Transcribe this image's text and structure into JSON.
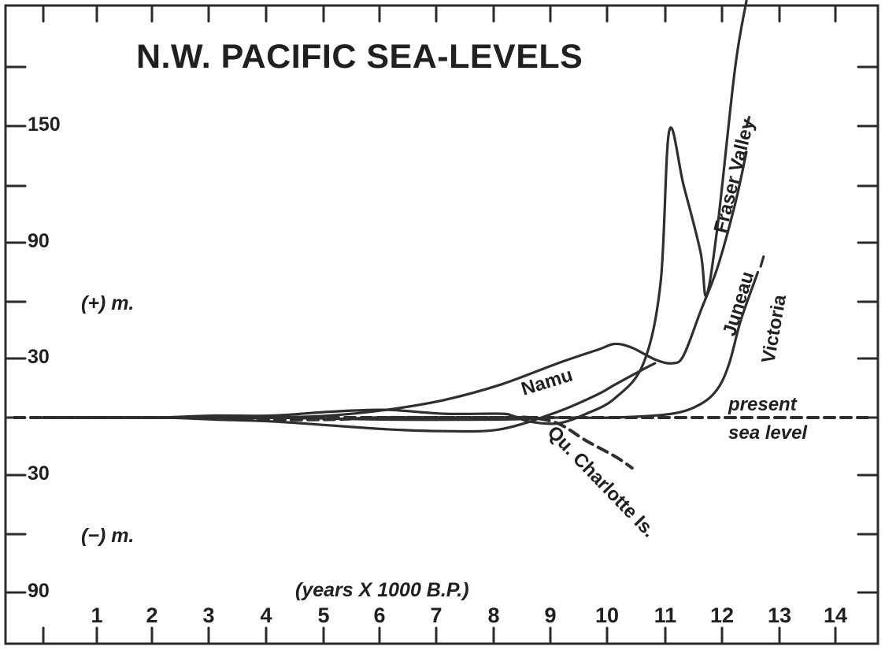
{
  "chart_data": {
    "type": "line",
    "title": "N.W. PACIFIC SEA-LEVELS",
    "xlabel": "(years X 1000 B.P.)",
    "y_positive_label": "(+) m.",
    "y_negative_label": "(−) m.",
    "x_ticks": [
      "1",
      "2",
      "3",
      "4",
      "5",
      "6",
      "7",
      "8",
      "9",
      "10",
      "11",
      "12",
      "13",
      "14"
    ],
    "y_ticks": [
      {
        "value": 150,
        "label": "150"
      },
      {
        "value": 90,
        "label": "90"
      },
      {
        "value": 30,
        "label": "30"
      },
      {
        "value": -30,
        "label": "30"
      },
      {
        "value": -90,
        "label": "90"
      }
    ],
    "xlim": [
      0,
      14.5
    ],
    "ylim": [
      -100,
      210
    ],
    "grid": false,
    "present_sea_level": {
      "label_line1": "present",
      "label_line2": "sea level",
      "y": 0
    },
    "series": [
      {
        "name": "Fraser Valley",
        "points": [
          [
            0,
            0
          ],
          [
            1,
            0
          ],
          [
            2,
            0
          ],
          [
            3,
            1
          ],
          [
            4,
            1
          ],
          [
            5,
            3
          ],
          [
            6,
            4
          ],
          [
            7,
            2
          ],
          [
            8,
            2
          ],
          [
            8.2,
            1
          ],
          [
            8.5,
            -2
          ],
          [
            9,
            -3
          ],
          [
            9.5,
            2
          ],
          [
            10,
            10
          ],
          [
            10.5,
            28
          ],
          [
            10.8,
            70
          ],
          [
            10.95,
            148
          ],
          [
            11.2,
            120
          ],
          [
            11.5,
            85
          ],
          [
            11.6,
            63
          ],
          [
            11.8,
            100
          ],
          [
            12.1,
            180
          ],
          [
            12.3,
            215
          ]
        ],
        "dashed": false
      },
      {
        "name": "Juneau",
        "points": [
          [
            0,
            0
          ],
          [
            2,
            0
          ],
          [
            3,
            0
          ],
          [
            4,
            0
          ],
          [
            5,
            1
          ],
          [
            6,
            4
          ],
          [
            7,
            9
          ],
          [
            8,
            17
          ],
          [
            9,
            28
          ],
          [
            9.7,
            35
          ],
          [
            10,
            38
          ],
          [
            10.3,
            36
          ],
          [
            10.7,
            30
          ],
          [
            11,
            28
          ],
          [
            11.2,
            32
          ],
          [
            11.5,
            55
          ],
          [
            11.8,
            78
          ],
          [
            12.1,
            110
          ],
          [
            12.3,
            137
          ]
        ],
        "dashed": false
      },
      {
        "name": "Victoria",
        "points": [
          [
            0,
            0
          ],
          [
            2,
            0
          ],
          [
            4,
            0
          ],
          [
            6,
            -1
          ],
          [
            8,
            -1
          ],
          [
            9,
            0
          ],
          [
            10,
            0
          ],
          [
            11,
            2
          ],
          [
            11.5,
            7
          ],
          [
            11.8,
            15
          ],
          [
            12,
            28
          ],
          [
            12.2,
            50
          ],
          [
            12.5,
            75
          ]
        ],
        "dashed": false
      },
      {
        "name": "Namu",
        "points": [
          [
            0,
            0
          ],
          [
            2,
            0
          ],
          [
            3,
            -1
          ],
          [
            4,
            -2
          ],
          [
            5,
            -4
          ],
          [
            6,
            -6
          ],
          [
            7,
            -7
          ],
          [
            8,
            -6
          ],
          [
            9,
            3
          ],
          [
            9.7,
            12
          ],
          [
            10,
            17
          ],
          [
            10.5,
            25
          ],
          [
            10.7,
            28
          ]
        ],
        "dashed": false
      },
      {
        "name": "Qu. Charlotte Is.",
        "points": [
          [
            0,
            0
          ],
          [
            2,
            0
          ],
          [
            3,
            0
          ],
          [
            4,
            -1
          ],
          [
            5,
            -1
          ],
          [
            6,
            0
          ],
          [
            7,
            0
          ],
          [
            8,
            0
          ],
          [
            8.5,
            0
          ],
          [
            9,
            -3
          ],
          [
            9.5,
            -12
          ],
          [
            10,
            -20
          ],
          [
            10.3,
            -26
          ]
        ],
        "dashed": true
      }
    ],
    "series_tail_markers": [
      {
        "series": "Fraser Valley",
        "points": [
          [
            12.3,
            150
          ],
          [
            12.35,
            155
          ]
        ]
      },
      {
        "series": "Victoria",
        "points": [
          [
            12.55,
            78
          ],
          [
            12.6,
            83
          ]
        ]
      }
    ]
  }
}
